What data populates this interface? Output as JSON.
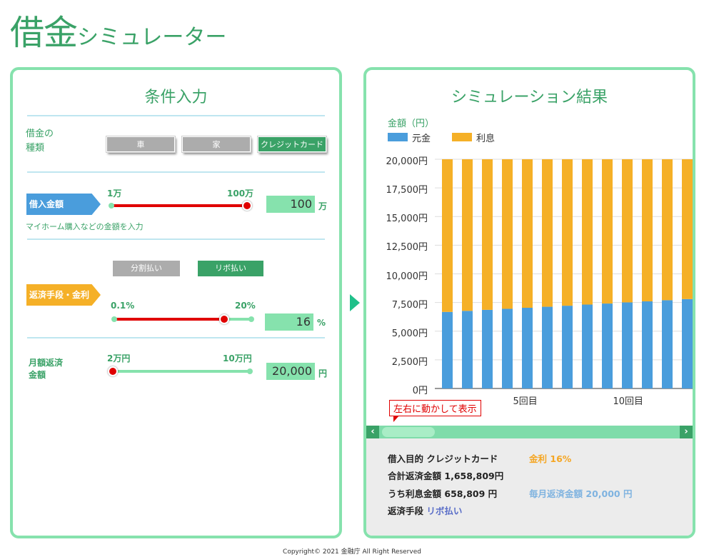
{
  "header": {
    "title_big": "借金",
    "title_small": "シミュレーター"
  },
  "input_panel": {
    "heading": "条件入力",
    "loan_type": {
      "label": "借金の\n種類",
      "options": [
        "車",
        "家",
        "クレジットカード"
      ],
      "selected": "クレジットカード"
    },
    "amount": {
      "tag": "借入金額",
      "min_label": "1万",
      "max_label": "100万",
      "value": "100",
      "unit": "万",
      "slider_fraction": 1.0,
      "note": "マイホーム購入などの金額を入力"
    },
    "repayment": {
      "tag": "返済手段・金利",
      "methods": [
        "分割払い",
        "リボ払い"
      ],
      "selected": "リボ払い",
      "min_label": "0.1%",
      "max_label": "20%",
      "value": "16",
      "unit": "%",
      "slider_fraction": 0.8
    },
    "monthly": {
      "label": "月額返済\n金額",
      "min_label": "2万円",
      "max_label": "10万円",
      "value": "20,000",
      "unit": "円",
      "slider_fraction": 0.0
    }
  },
  "result_panel": {
    "heading": "シミュレーション結果",
    "hint": "左右に動かして表示",
    "summary": {
      "purpose_label": "借入目的",
      "purpose_value": "クレジットカード",
      "rate_label": "金利",
      "rate_value": "16%",
      "total_label": "合計返済金額",
      "total_value": "1,658,809円",
      "interest_label": "うち利息金額",
      "interest_value": "658,809 円",
      "monthly_label": "毎月返済金額",
      "monthly_value": "20,000 円",
      "method_label": "返済手段",
      "method_value": "リボ払い"
    }
  },
  "chart_data": {
    "type": "bar",
    "stacked": true,
    "ylabel": "金額（円）",
    "ylim": [
      0,
      20000
    ],
    "yticks": [
      "0円",
      "2,500円",
      "5,000円",
      "7,500円",
      "10,000円",
      "12,500円",
      "15,000円",
      "17,500円",
      "20,000円"
    ],
    "x_tick_labels": [
      {
        "index": 4,
        "label": "5回目"
      },
      {
        "index": 9,
        "label": "10回目"
      }
    ],
    "series": [
      {
        "name": "元金",
        "color": "#4a9ddc",
        "values": [
          6680,
          6770,
          6860,
          6950,
          7040,
          7130,
          7220,
          7320,
          7410,
          7510,
          7600,
          7700,
          7800
        ]
      },
      {
        "name": "利息",
        "color": "#f5b027",
        "values": [
          13320,
          13230,
          13140,
          13050,
          12960,
          12870,
          12780,
          12680,
          12590,
          12490,
          12400,
          12300,
          12200
        ]
      }
    ],
    "legend": "top-left",
    "grid": true
  },
  "footer": {
    "copyright": "Copyright© 2021 金融庁 All Right Reserved"
  }
}
